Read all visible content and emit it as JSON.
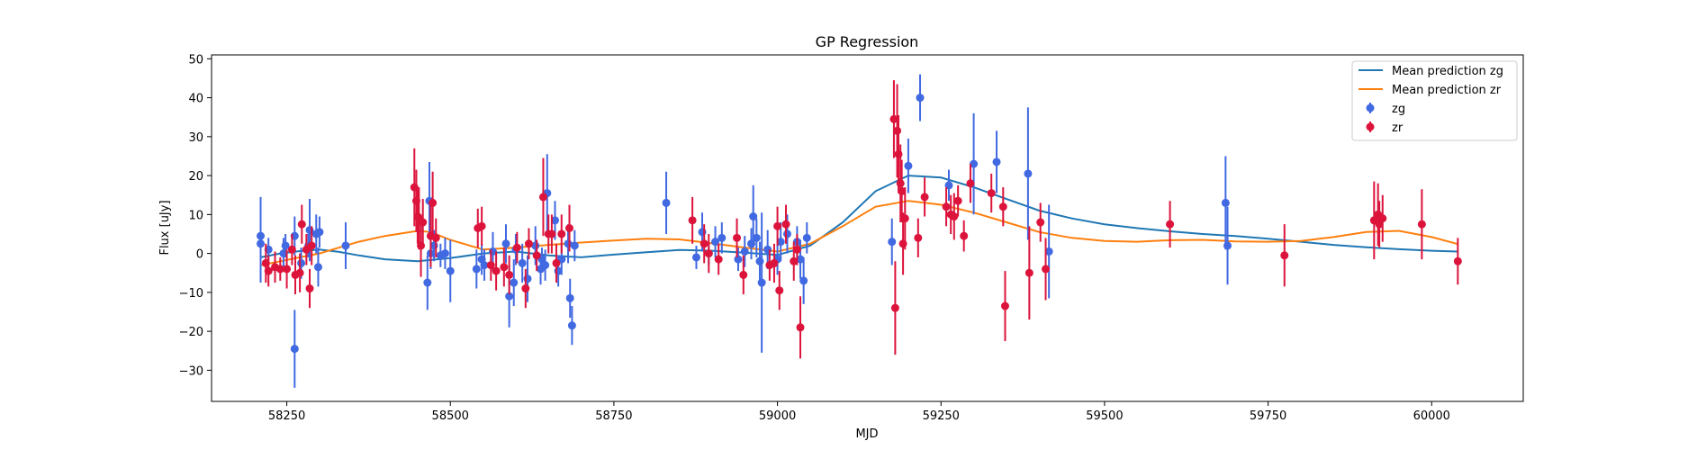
{
  "chart_data": {
    "type": "scatter",
    "title": "GP Regression",
    "xlabel": "MJD",
    "ylabel": "Flux [uJy]",
    "xlim": [
      58135,
      60140
    ],
    "ylim": [
      -38,
      51
    ],
    "xticks": [
      58250,
      58500,
      58750,
      59000,
      59250,
      59500,
      59750,
      60000
    ],
    "yticks": [
      -30,
      -20,
      -10,
      0,
      10,
      20,
      30,
      40,
      50
    ],
    "grid": false,
    "legend_position": "top-right",
    "legend": [
      {
        "label": "Mean prediction zg",
        "kind": "line",
        "color": "#1f77b4"
      },
      {
        "label": "Mean prediction zr",
        "kind": "line",
        "color": "#ff7f0e"
      },
      {
        "label": "zg",
        "kind": "errorbar",
        "color": "#4169e1"
      },
      {
        "label": "zr",
        "kind": "errorbar",
        "color": "#dc143c"
      }
    ],
    "lines": [
      {
        "name": "Mean prediction zg",
        "color": "#1f77b4",
        "x": [
          58210,
          58240,
          58270,
          58300,
          58330,
          58360,
          58400,
          58450,
          58500,
          58550,
          58600,
          58650,
          58700,
          58750,
          58800,
          58850,
          58900,
          58950,
          59000,
          59050,
          59100,
          59150,
          59200,
          59250,
          59300,
          59350,
          59400,
          59450,
          59500,
          59550,
          59600,
          59650,
          59700,
          59750,
          59800,
          59850,
          59900,
          59950,
          60000,
          60040
        ],
        "y": [
          -1,
          0,
          0.6,
          1,
          0.4,
          -0.5,
          -1.5,
          -2,
          -1.2,
          0,
          0.5,
          -0.5,
          -1,
          -0.3,
          0.3,
          0.9,
          0.7,
          0.2,
          -0.4,
          2,
          8,
          16,
          20,
          19.5,
          17,
          14,
          11,
          9,
          7.5,
          6.5,
          5.7,
          5,
          4.5,
          3.8,
          3,
          2.2,
          1.6,
          1.1,
          0.7,
          0.5
        ]
      },
      {
        "name": "Mean prediction zr",
        "color": "#ff7f0e",
        "x": [
          58210,
          58240,
          58270,
          58300,
          58330,
          58360,
          58400,
          58450,
          58470,
          58500,
          58550,
          58600,
          58650,
          58700,
          58750,
          58800,
          58850,
          58900,
          58950,
          59000,
          59050,
          59100,
          59150,
          59200,
          59250,
          59300,
          59350,
          59400,
          59450,
          59500,
          59550,
          59600,
          59650,
          59700,
          59750,
          59800,
          59850,
          59900,
          59950,
          60000,
          60040
        ],
        "y": [
          -3,
          -2,
          -1,
          0,
          1.5,
          3,
          4.5,
          5.8,
          5.5,
          3.5,
          1,
          1.5,
          2.2,
          2.8,
          3.3,
          3.8,
          3.6,
          2.6,
          1.5,
          0.5,
          2.5,
          7,
          12,
          13.5,
          12.5,
          10.5,
          8,
          5.5,
          4,
          3.2,
          3,
          3.4,
          3.5,
          3.1,
          3,
          3.2,
          4.2,
          5.5,
          5.8,
          4.2,
          2.4
        ]
      }
    ],
    "series": [
      {
        "name": "zg",
        "color": "#4169e1",
        "points": [
          [
            58210,
            4.5,
            10
          ],
          [
            58210,
            2.5,
            10
          ],
          [
            58222,
            1,
            3
          ],
          [
            58245,
            0,
            4
          ],
          [
            58248,
            2,
            3
          ],
          [
            58262,
            -24.5,
            10
          ],
          [
            58262,
            4.5,
            5
          ],
          [
            58272,
            -2.5,
            4
          ],
          [
            58283,
            2,
            3
          ],
          [
            58285,
            6,
            8
          ],
          [
            58295,
            5,
            5
          ],
          [
            58298,
            -3.5,
            5
          ],
          [
            58300,
            5.5,
            4
          ],
          [
            58340,
            2,
            6
          ],
          [
            58465,
            -7.5,
            7
          ],
          [
            58468,
            13.5,
            10
          ],
          [
            58470,
            0,
            4
          ],
          [
            58475,
            2,
            4
          ],
          [
            58485,
            -0.5,
            3
          ],
          [
            58492,
            0,
            4
          ],
          [
            58500,
            -4.5,
            8
          ],
          [
            58540,
            -4,
            5
          ],
          [
            58548,
            -1.5,
            4
          ],
          [
            58552,
            -3,
            4
          ],
          [
            58565,
            0.5,
            5
          ],
          [
            58585,
            2.5,
            5
          ],
          [
            58590,
            -11,
            8
          ],
          [
            58597,
            -7.5,
            6
          ],
          [
            58600,
            1,
            4
          ],
          [
            58610,
            -2.5,
            5
          ],
          [
            58618,
            -6.5,
            6
          ],
          [
            58630,
            2,
            5
          ],
          [
            58638,
            -4,
            4
          ],
          [
            58640,
            -1.5,
            3
          ],
          [
            58645,
            -3,
            4
          ],
          [
            58648,
            15.5,
            10
          ],
          [
            58660,
            8.5,
            5
          ],
          [
            58665,
            -4.5,
            4
          ],
          [
            58670,
            -1.5,
            4
          ],
          [
            58680,
            2.5,
            5
          ],
          [
            58683,
            -11.5,
            5
          ],
          [
            58686,
            -18.5,
            5
          ],
          [
            58690,
            2,
            4
          ],
          [
            58830,
            13,
            8
          ],
          [
            58876,
            -1,
            3
          ],
          [
            58885,
            5.5,
            5
          ],
          [
            58895,
            0,
            3
          ],
          [
            58905,
            3,
            4
          ],
          [
            58915,
            4,
            4
          ],
          [
            58940,
            -1.5,
            3
          ],
          [
            58950,
            0.5,
            4
          ],
          [
            58960,
            2.5,
            4
          ],
          [
            58963,
            9.5,
            8
          ],
          [
            58968,
            4,
            5
          ],
          [
            58973,
            -2,
            5
          ],
          [
            58976,
            -7.5,
            18
          ],
          [
            58985,
            1,
            5
          ],
          [
            59000,
            -1.5,
            4
          ],
          [
            59005,
            3,
            5
          ],
          [
            59015,
            5,
            5
          ],
          [
            59030,
            3,
            4
          ],
          [
            59035,
            -1.5,
            5
          ],
          [
            59040,
            -7,
            6
          ],
          [
            59045,
            4,
            4
          ],
          [
            59175,
            3,
            6
          ],
          [
            59200,
            22.5,
            7
          ],
          [
            59218,
            40,
            6
          ],
          [
            59262,
            17.5,
            4
          ],
          [
            59300,
            23,
            13
          ],
          [
            59335,
            23.5,
            8
          ],
          [
            59383,
            20.5,
            17
          ],
          [
            59415,
            0.5,
            12
          ],
          [
            59685,
            13,
            12
          ],
          [
            59688,
            2,
            10
          ]
        ]
      },
      {
        "name": "zr",
        "color": "#dc143c",
        "points": [
          [
            58218,
            -2.5,
            5
          ],
          [
            58222,
            -4.5,
            4
          ],
          [
            58232,
            -3.5,
            4
          ],
          [
            58240,
            -4,
            3
          ],
          [
            58250,
            -4,
            5
          ],
          [
            58258,
            1,
            4
          ],
          [
            58263,
            -5.5,
            5
          ],
          [
            58270,
            -5,
            5
          ],
          [
            58273,
            7.5,
            5
          ],
          [
            58280,
            1,
            4
          ],
          [
            58285,
            -9,
            5
          ],
          [
            58288,
            2,
            5
          ],
          [
            58445,
            17,
            10
          ],
          [
            58448,
            13.5,
            8
          ],
          [
            58450,
            9.5,
            7
          ],
          [
            58452,
            9,
            8
          ],
          [
            58455,
            2,
            8
          ],
          [
            58458,
            8,
            6
          ],
          [
            58470,
            4.5,
            8
          ],
          [
            58473,
            13,
            8
          ],
          [
            58478,
            4,
            5
          ],
          [
            58542,
            6.5,
            5
          ],
          [
            58548,
            7,
            5
          ],
          [
            58562,
            -3,
            4
          ],
          [
            58570,
            -4.5,
            5
          ],
          [
            58582,
            -3.5,
            5
          ],
          [
            58590,
            -5.5,
            5
          ],
          [
            58602,
            1.5,
            4
          ],
          [
            58615,
            -9,
            5
          ],
          [
            58620,
            2.5,
            4
          ],
          [
            58632,
            -0.5,
            4
          ],
          [
            58642,
            14.5,
            10
          ],
          [
            58650,
            5,
            5
          ],
          [
            58655,
            5,
            5
          ],
          [
            58662,
            -2.5,
            5
          ],
          [
            58670,
            5,
            5
          ],
          [
            58682,
            6.5,
            6
          ],
          [
            58870,
            8.5,
            6
          ],
          [
            58888,
            2.5,
            5
          ],
          [
            58895,
            0,
            5
          ],
          [
            58910,
            -1.5,
            4
          ],
          [
            58938,
            4,
            5
          ],
          [
            58948,
            -5.5,
            5
          ],
          [
            58988,
            -3,
            4
          ],
          [
            58995,
            -2.5,
            5
          ],
          [
            59000,
            7,
            5
          ],
          [
            59003,
            -9.5,
            5
          ],
          [
            59013,
            7.5,
            5
          ],
          [
            59025,
            -2,
            5
          ],
          [
            59030,
            1,
            4
          ],
          [
            59035,
            -19,
            8
          ],
          [
            59178,
            34.5,
            10
          ],
          [
            59180,
            -14,
            12
          ],
          [
            59183,
            31.5,
            12
          ],
          [
            59185,
            25.5,
            10
          ],
          [
            59188,
            18,
            10
          ],
          [
            59190,
            16,
            8
          ],
          [
            59195,
            9,
            8
          ],
          [
            59192,
            2.5,
            8
          ],
          [
            59215,
            4,
            5
          ],
          [
            59225,
            14.5,
            5
          ],
          [
            59258,
            12,
            5
          ],
          [
            59265,
            10,
            5
          ],
          [
            59270,
            9.5,
            6
          ],
          [
            59276,
            13.5,
            4
          ],
          [
            59285,
            4.5,
            4
          ],
          [
            59295,
            18,
            5
          ],
          [
            59327,
            15.5,
            5
          ],
          [
            59345,
            12,
            5
          ],
          [
            59348,
            -13.5,
            9
          ],
          [
            59385,
            -5,
            12
          ],
          [
            59402,
            8,
            5
          ],
          [
            59410,
            -4,
            8
          ],
          [
            59600,
            7.5,
            6
          ],
          [
            59775,
            -0.5,
            8
          ],
          [
            59912,
            8.5,
            10
          ],
          [
            59918,
            10,
            8
          ],
          [
            59920,
            7.5,
            6
          ],
          [
            59925,
            9,
            6
          ],
          [
            59985,
            7.5,
            9
          ],
          [
            60040,
            -2,
            6
          ]
        ]
      }
    ]
  }
}
